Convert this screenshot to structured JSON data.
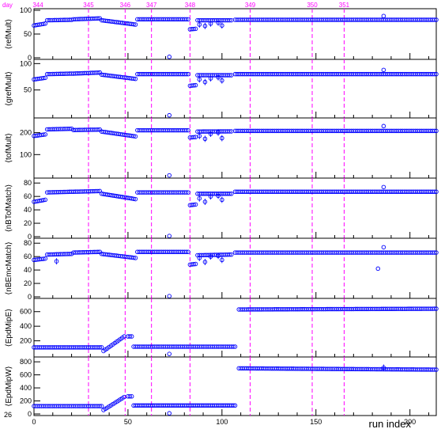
{
  "chart_data": {
    "type": "scatter",
    "x_title": "run index",
    "x_ticks": [
      "0",
      "50",
      "100",
      "150",
      "200"
    ],
    "xlim": [
      0,
      214
    ],
    "day_prefix": "day",
    "days": [
      {
        "label": "344",
        "x": 0
      },
      {
        "label": "345",
        "x": 29
      },
      {
        "label": "346",
        "x": 48.5
      },
      {
        "label": "347",
        "x": 62.5
      },
      {
        "label": "348",
        "x": 83
      },
      {
        "label": "349",
        "x": 115
      },
      {
        "label": "350",
        "x": 148
      },
      {
        "label": "351",
        "x": 165
      }
    ],
    "corner_label": "26",
    "colors": {
      "marker": "#0000ff",
      "day_line": "#ff00ff",
      "axis": "#000000"
    },
    "panels": [
      {
        "ylabel": "⟨refMult⟩",
        "ylim": [
          0,
          100
        ],
        "ticks": [
          "0",
          "50",
          "100"
        ],
        "segments": [
          {
            "x": [
              0,
              6
            ],
            "y": [
              68,
              72
            ]
          },
          {
            "x": [
              7,
              20
            ],
            "y": [
              79,
              80
            ]
          },
          {
            "x": [
              21,
              35
            ],
            "y": [
              81,
              83
            ]
          },
          {
            "x": [
              36,
              54
            ],
            "y": [
              79,
              70
            ]
          },
          {
            "x": [
              55,
              82
            ],
            "y": [
              81,
              81
            ]
          },
          {
            "x": [
              83,
              86
            ],
            "y": [
              60,
              61
            ]
          },
          {
            "x": [
              87,
              105
            ],
            "y": [
              79,
              79
            ]
          },
          {
            "x": [
              107,
              214
            ],
            "y": [
              80,
              80
            ]
          }
        ],
        "dips": [
          {
            "x": 88,
            "y": 70
          },
          {
            "x": 91,
            "y": 67
          },
          {
            "x": 94,
            "y": 72
          },
          {
            "x": 98,
            "y": 74
          },
          {
            "x": 100,
            "y": 68
          }
        ],
        "outliers": [
          {
            "x": 72,
            "y": 2
          },
          {
            "x": 186,
            "y": 88
          }
        ]
      },
      {
        "ylabel": "⟨grefMult⟩",
        "ylim": [
          0,
          105
        ],
        "ticks": [
          "50",
          "100"
        ],
        "segments": [
          {
            "x": [
              0,
              6
            ],
            "y": [
              70,
              73
            ]
          },
          {
            "x": [
              7,
              20
            ],
            "y": [
              80,
              81
            ]
          },
          {
            "x": [
              21,
              35
            ],
            "y": [
              81,
              83
            ]
          },
          {
            "x": [
              36,
              54
            ],
            "y": [
              79,
              71
            ]
          },
          {
            "x": [
              55,
              82
            ],
            "y": [
              80,
              80
            ]
          },
          {
            "x": [
              83,
              86
            ],
            "y": [
              58,
              59
            ]
          },
          {
            "x": [
              87,
              105
            ],
            "y": [
              78,
              78
            ]
          },
          {
            "x": [
              107,
              214
            ],
            "y": [
              80,
              80
            ]
          }
        ],
        "dips": [
          {
            "x": 88,
            "y": 70
          },
          {
            "x": 91,
            "y": 65
          },
          {
            "x": 94,
            "y": 72
          },
          {
            "x": 98,
            "y": 74
          },
          {
            "x": 100,
            "y": 68
          }
        ],
        "outliers": [
          {
            "x": 72,
            "y": 2
          },
          {
            "x": 186,
            "y": 88
          }
        ]
      },
      {
        "ylabel": "⟨tofMult⟩",
        "ylim": [
          0,
          260
        ],
        "ticks": [
          "100",
          "200"
        ],
        "segments": [
          {
            "x": [
              0,
              6
            ],
            "y": [
              185,
              192
            ]
          },
          {
            "x": [
              7,
              20
            ],
            "y": [
              215,
              218
            ]
          },
          {
            "x": [
              21,
              35
            ],
            "y": [
              212,
              214
            ]
          },
          {
            "x": [
              36,
              54
            ],
            "y": [
              205,
              183
            ]
          },
          {
            "x": [
              55,
              82
            ],
            "y": [
              211,
              211
            ]
          },
          {
            "x": [
              83,
              86
            ],
            "y": [
              178,
              180
            ]
          },
          {
            "x": [
              87,
              105
            ],
            "y": [
              205,
              206
            ]
          },
          {
            "x": [
              107,
              214
            ],
            "y": [
              208,
              208
            ]
          }
        ],
        "dips": [
          {
            "x": 88,
            "y": 185
          },
          {
            "x": 91,
            "y": 172
          },
          {
            "x": 94,
            "y": 195
          },
          {
            "x": 98,
            "y": 200
          },
          {
            "x": 100,
            "y": 175
          }
        ],
        "outliers": [
          {
            "x": 72,
            "y": 5
          },
          {
            "x": 186,
            "y": 230
          }
        ]
      },
      {
        "ylabel": "⟨nBTofMatch⟩",
        "ylim": [
          0,
          85
        ],
        "ticks": [
          "0",
          "20",
          "40",
          "60",
          "80"
        ],
        "segments": [
          {
            "x": [
              0,
              6
            ],
            "y": [
              52,
              55
            ]
          },
          {
            "x": [
              7,
              20
            ],
            "y": [
              66,
              67
            ]
          },
          {
            "x": [
              21,
              35
            ],
            "y": [
              67,
              68
            ]
          },
          {
            "x": [
              36,
              54
            ],
            "y": [
              64,
              56
            ]
          },
          {
            "x": [
              55,
              82
            ],
            "y": [
              66,
              66
            ]
          },
          {
            "x": [
              83,
              86
            ],
            "y": [
              47,
              48
            ]
          },
          {
            "x": [
              87,
              105
            ],
            "y": [
              64,
              64
            ]
          },
          {
            "x": [
              107,
              214
            ],
            "y": [
              67,
              67
            ]
          }
        ],
        "dips": [
          {
            "x": 88,
            "y": 57
          },
          {
            "x": 91,
            "y": 52
          },
          {
            "x": 94,
            "y": 60
          },
          {
            "x": 98,
            "y": 61
          },
          {
            "x": 100,
            "y": 55
          }
        ],
        "outliers": [
          {
            "x": 72,
            "y": 1
          },
          {
            "x": 186,
            "y": 74
          }
        ]
      },
      {
        "ylabel": "⟨nBEmcMatch⟩",
        "ylim": [
          0,
          85
        ],
        "ticks": [
          "0",
          "20",
          "40",
          "60",
          "80"
        ],
        "segments": [
          {
            "x": [
              0,
              6
            ],
            "y": [
              55,
              57
            ]
          },
          {
            "x": [
              7,
              20
            ],
            "y": [
              63,
              64
            ]
          },
          {
            "x": [
              21,
              35
            ],
            "y": [
              66,
              67
            ]
          },
          {
            "x": [
              36,
              54
            ],
            "y": [
              64,
              58
            ]
          },
          {
            "x": [
              55,
              82
            ],
            "y": [
              67,
              67
            ]
          },
          {
            "x": [
              83,
              86
            ],
            "y": [
              48,
              49
            ]
          },
          {
            "x": [
              87,
              105
            ],
            "y": [
              62,
              63
            ]
          },
          {
            "x": [
              107,
              214
            ],
            "y": [
              66,
              66
            ]
          }
        ],
        "dips": [
          {
            "x": 88,
            "y": 58
          },
          {
            "x": 91,
            "y": 52
          },
          {
            "x": 94,
            "y": 60
          },
          {
            "x": 98,
            "y": 61
          },
          {
            "x": 100,
            "y": 55
          },
          {
            "x": 12,
            "y": 53
          }
        ],
        "outliers": [
          {
            "x": 72,
            "y": 1
          },
          {
            "x": 186,
            "y": 74
          },
          {
            "x": 183,
            "y": 42
          }
        ]
      },
      {
        "ylabel": "⟨EpdMipE⟩",
        "ylim": [
          0,
          760
        ],
        "ticks": [
          "200",
          "400",
          "600"
        ],
        "segments": [
          {
            "x": [
              0,
              36
            ],
            "y": [
              110,
              110
            ]
          },
          {
            "x": [
              37,
              48
            ],
            "y": [
              60,
              260
            ]
          },
          {
            "x": [
              50,
              52
            ],
            "y": [
              260,
              260
            ]
          },
          {
            "x": [
              53,
              107
            ],
            "y": [
              120,
              120
            ]
          },
          {
            "x": [
              109,
              214
            ],
            "y": [
              630,
              640
            ]
          }
        ],
        "dips": [],
        "outliers": [
          {
            "x": 72,
            "y": 20
          }
        ]
      },
      {
        "ylabel": "⟨EpdMipW⟩",
        "ylim": [
          0,
          850
        ],
        "ticks": [
          "0",
          "200",
          "400",
          "600",
          "800"
        ],
        "segments": [
          {
            "x": [
              0,
              36
            ],
            "y": [
              120,
              120
            ]
          },
          {
            "x": [
              37,
              48
            ],
            "y": [
              60,
              260
            ]
          },
          {
            "x": [
              50,
              52
            ],
            "y": [
              270,
              270
            ]
          },
          {
            "x": [
              53,
              107
            ],
            "y": [
              130,
              130
            ]
          },
          {
            "x": [
              109,
              214
            ],
            "y": [
              700,
              680
            ]
          }
        ],
        "dips": [
          {
            "x": 186,
            "y": 710
          }
        ],
        "outliers": [
          {
            "x": 72,
            "y": 10
          }
        ]
      }
    ]
  }
}
